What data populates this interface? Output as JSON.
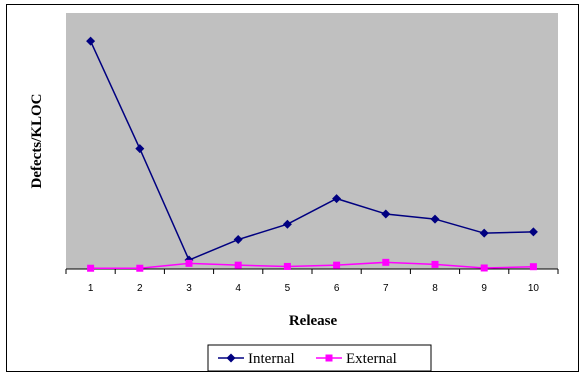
{
  "chart_data": {
    "type": "line",
    "title": "",
    "xlabel": "Release",
    "ylabel": "Defects/KLOC",
    "categories": [
      "1",
      "2",
      "3",
      "4",
      "5",
      "6",
      "7",
      "8",
      "9",
      "10"
    ],
    "ylim": [
      0,
      100
    ],
    "grid": false,
    "legend_position": "bottom",
    "plot_background": "#C0C0C0",
    "series": [
      {
        "name": "Internal",
        "color": "#000080",
        "marker": "diamond",
        "values": [
          89,
          47,
          3.5,
          11.5,
          17.5,
          27.5,
          21.5,
          19.5,
          14,
          14.5
        ]
      },
      {
        "name": "External",
        "color": "#FF00FF",
        "marker": "square",
        "values": [
          0.3,
          0.3,
          2.2,
          1.5,
          1.0,
          1.5,
          2.6,
          1.8,
          0.4,
          0.9
        ]
      }
    ]
  }
}
